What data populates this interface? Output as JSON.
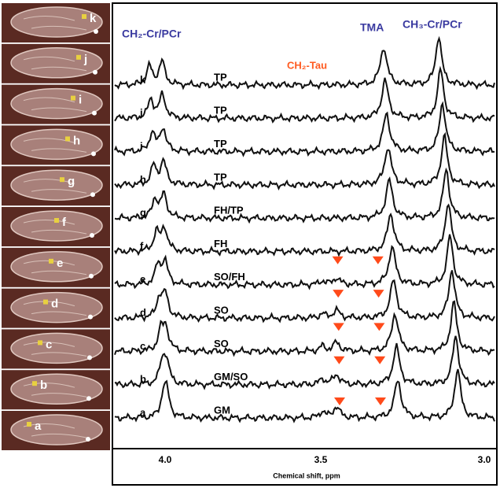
{
  "thumbnails": [
    {
      "label": "k"
    },
    {
      "label": "j"
    },
    {
      "label": "i"
    },
    {
      "label": "h"
    },
    {
      "label": "g"
    },
    {
      "label": "f"
    },
    {
      "label": "e"
    },
    {
      "label": "d"
    },
    {
      "label": "c"
    },
    {
      "label": "b"
    },
    {
      "label": "a"
    }
  ],
  "traces": [
    {
      "label": "k",
      "tissue": "TP"
    },
    {
      "label": "j",
      "tissue": "TP"
    },
    {
      "label": "i",
      "tissue": "TP"
    },
    {
      "label": "h",
      "tissue": "TP"
    },
    {
      "label": "g",
      "tissue": "FH/TP"
    },
    {
      "label": "f",
      "tissue": "FH"
    },
    {
      "label": "e",
      "tissue": "SO/FH"
    },
    {
      "label": "d",
      "tissue": "SO"
    },
    {
      "label": "c",
      "tissue": "SO"
    },
    {
      "label": "b",
      "tissue": "GM/SO"
    },
    {
      "label": "a",
      "tissue": "GM"
    }
  ],
  "peak_labels": {
    "ch2_cr": "CH₂-Cr/PCr",
    "ch2_tau": "CH₂-Tau",
    "tma": "TMA",
    "ch3_cr": "CH₃-Cr/PCr"
  },
  "x_axis": {
    "ticks": [
      "4.0",
      "3.5",
      "3.0"
    ],
    "title": "Chemical shift, ppm"
  }
}
